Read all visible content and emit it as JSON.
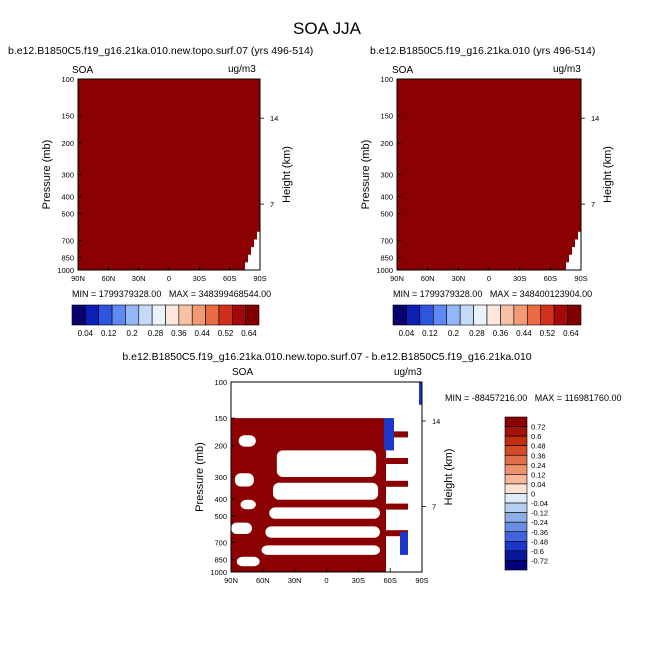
{
  "page_title": "SOA JJA",
  "chart_data": [
    {
      "type": "heatmap",
      "title": "b.e12.B1850C5.f19_g16.21ka.010.new.topo.surf.07 (yrs 496-514)",
      "left_label": "SOA",
      "units": "ug/m3",
      "ylabel": "Pressure (mb)",
      "ylabel_right": "Height (km)",
      "x_ticks": [
        "90N",
        "60N",
        "30N",
        "0",
        "30S",
        "60S",
        "90S"
      ],
      "y_ticks": [
        "100",
        "150",
        "200",
        "300",
        "400",
        "500",
        "700",
        "850",
        "1000"
      ],
      "y_ticks_right": [
        "14",
        "7"
      ],
      "ylim": [
        1000,
        100
      ],
      "field_fill": "#8b0000",
      "stats": "MIN = 1799379328.00   MAX = 348399468544.00",
      "colorbar": {
        "labels": [
          "0.04",
          "0.12",
          "0.2",
          "0.28",
          "0.36",
          "0.44",
          "0.52",
          "0.64"
        ],
        "colors": [
          "#08006e",
          "#0c1fb5",
          "#2e55e0",
          "#5f88f2",
          "#93b6f7",
          "#c4daf8",
          "#eaf2fc",
          "#fde7dc",
          "#f6c2a6",
          "#f19a73",
          "#e86b44",
          "#d2301c",
          "#a50806",
          "#800000"
        ]
      }
    },
    {
      "type": "heatmap",
      "title": "b.e12.B1850C5.f19_g16.21ka.010 (yrs 496-514)",
      "left_label": "SOA",
      "units": "ug/m3",
      "ylabel": "Pressure (mb)",
      "ylabel_right": "Height (km)",
      "x_ticks": [
        "90N",
        "60N",
        "30N",
        "0",
        "30S",
        "60S",
        "90S"
      ],
      "y_ticks": [
        "100",
        "150",
        "200",
        "300",
        "400",
        "500",
        "700",
        "850",
        "1000"
      ],
      "y_ticks_right": [
        "14",
        "7"
      ],
      "ylim": [
        1000,
        100
      ],
      "field_fill": "#8b0000",
      "stats": "MIN = 1799379328.00   MAX = 348400123904.00",
      "colorbar": {
        "labels": [
          "0.04",
          "0.12",
          "0.2",
          "0.28",
          "0.36",
          "0.44",
          "0.52",
          "0.64"
        ],
        "colors": [
          "#08006e",
          "#0c1fb5",
          "#2e55e0",
          "#5f88f2",
          "#93b6f7",
          "#c4daf8",
          "#eaf2fc",
          "#fde7dc",
          "#f6c2a6",
          "#f19a73",
          "#e86b44",
          "#d2301c",
          "#a50806",
          "#800000"
        ]
      }
    },
    {
      "type": "heatmap",
      "title": "b.e12.B1850C5.f19_g16.21ka.010.new.topo.surf.07 - b.e12.B1850C5.f19_g16.21ka.010",
      "left_label": "SOA",
      "units": "ug/m3",
      "ylabel": "Pressure (mb)",
      "ylabel_right": "Height (km)",
      "x_ticks": [
        "90N",
        "60N",
        "30N",
        "0",
        "30S",
        "60S",
        "90S"
      ],
      "y_ticks": [
        "100",
        "150",
        "200",
        "300",
        "400",
        "500",
        "700",
        "850",
        "1000"
      ],
      "y_ticks_right": [
        "14",
        "7"
      ],
      "ylim": [
        1000,
        100
      ],
      "stats": "MIN = -88457216.00   MAX = 116981760.00",
      "colorbar": {
        "labels": [
          "0.72",
          "0.6",
          "0.48",
          "0.36",
          "0.24",
          "0.12",
          "0.04",
          "0",
          "-0.04",
          "-0.12",
          "-0.24",
          "-0.36",
          "-0.48",
          "-0.6",
          "-0.72"
        ],
        "colors": [
          "#8b0000",
          "#a51208",
          "#c0300f",
          "#d24b27",
          "#e06e48",
          "#ec936d",
          "#f6b89a",
          "#fde0cf",
          "#ddeaf8",
          "#b6ceef",
          "#8faee8",
          "#6a8ee0",
          "#3f64dd",
          "#1c36c8",
          "#0a1799",
          "#00007a"
        ]
      }
    }
  ]
}
